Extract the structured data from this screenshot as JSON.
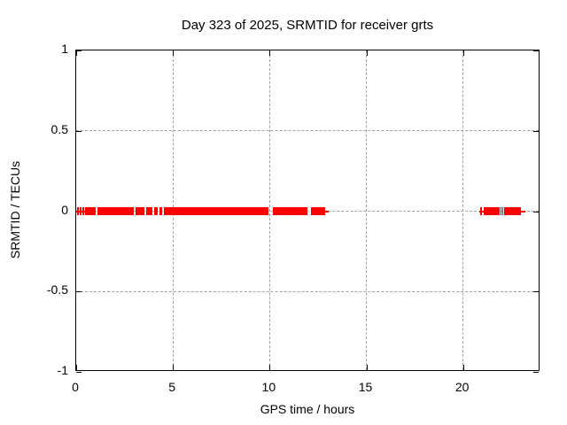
{
  "page": {
    "background": "#ffffff"
  },
  "chart_data": {
    "type": "scatter",
    "plot_style": "errorbars",
    "title": "Day 323 of 2025, SRMTID for receiver grts",
    "xlabel": "GPS time / hours",
    "ylabel": "SRMTID / TECUs",
    "xlim": [
      0,
      24
    ],
    "ylim": [
      -1,
      1
    ],
    "xticks": [
      0,
      5,
      10,
      15,
      20
    ],
    "xtick_labels": [
      "0",
      "5",
      "10",
      "15",
      "20"
    ],
    "yticks": [
      -1,
      -0.5,
      0,
      0.5,
      1
    ],
    "ytick_labels": [
      "-1",
      "-0.5",
      "0",
      "0.5",
      "1"
    ],
    "grid": true,
    "grid_color": "#a0a0a0",
    "axis_color": "#000000",
    "legend": "none",
    "series": [
      {
        "name": "SRMTID",
        "color": "#ff0000",
        "value_tecu": 0,
        "note": "all points lie at SRMTID = 0 TECUs; dense runs merge into solid bars, thin parts are errorbar whisker lines",
        "segments": [
          {
            "from": 0.0,
            "to": 0.46,
            "style": "line"
          },
          {
            "from": 0.46,
            "to": 1.01,
            "style": "bar"
          },
          {
            "from": 1.1,
            "to": 2.98,
            "style": "bar"
          },
          {
            "from": 3.07,
            "to": 3.53,
            "style": "bar"
          },
          {
            "from": 3.62,
            "to": 3.94,
            "style": "bar"
          },
          {
            "from": 4.03,
            "to": 4.21,
            "style": "bar"
          },
          {
            "from": 4.3,
            "to": 4.44,
            "style": "bar"
          },
          {
            "from": 4.53,
            "to": 9.94,
            "style": "bar"
          },
          {
            "from": 10.17,
            "to": 11.96,
            "style": "bar"
          },
          {
            "from": 12.14,
            "to": 12.87,
            "style": "bar"
          },
          {
            "from": 12.87,
            "to": 13.05,
            "style": "line"
          },
          {
            "from": 20.84,
            "to": 21.07,
            "style": "line"
          },
          {
            "from": 21.07,
            "to": 21.89,
            "style": "bar"
          },
          {
            "from": 21.93,
            "to": 21.98,
            "style": "bar"
          },
          {
            "from": 22.02,
            "to": 22.07,
            "style": "bar"
          },
          {
            "from": 22.12,
            "to": 22.99,
            "style": "bar"
          },
          {
            "from": 22.99,
            "to": 23.22,
            "style": "line"
          }
        ],
        "isolated_points": [
          0.09,
          0.23,
          0.37,
          20.93
        ]
      }
    ]
  }
}
